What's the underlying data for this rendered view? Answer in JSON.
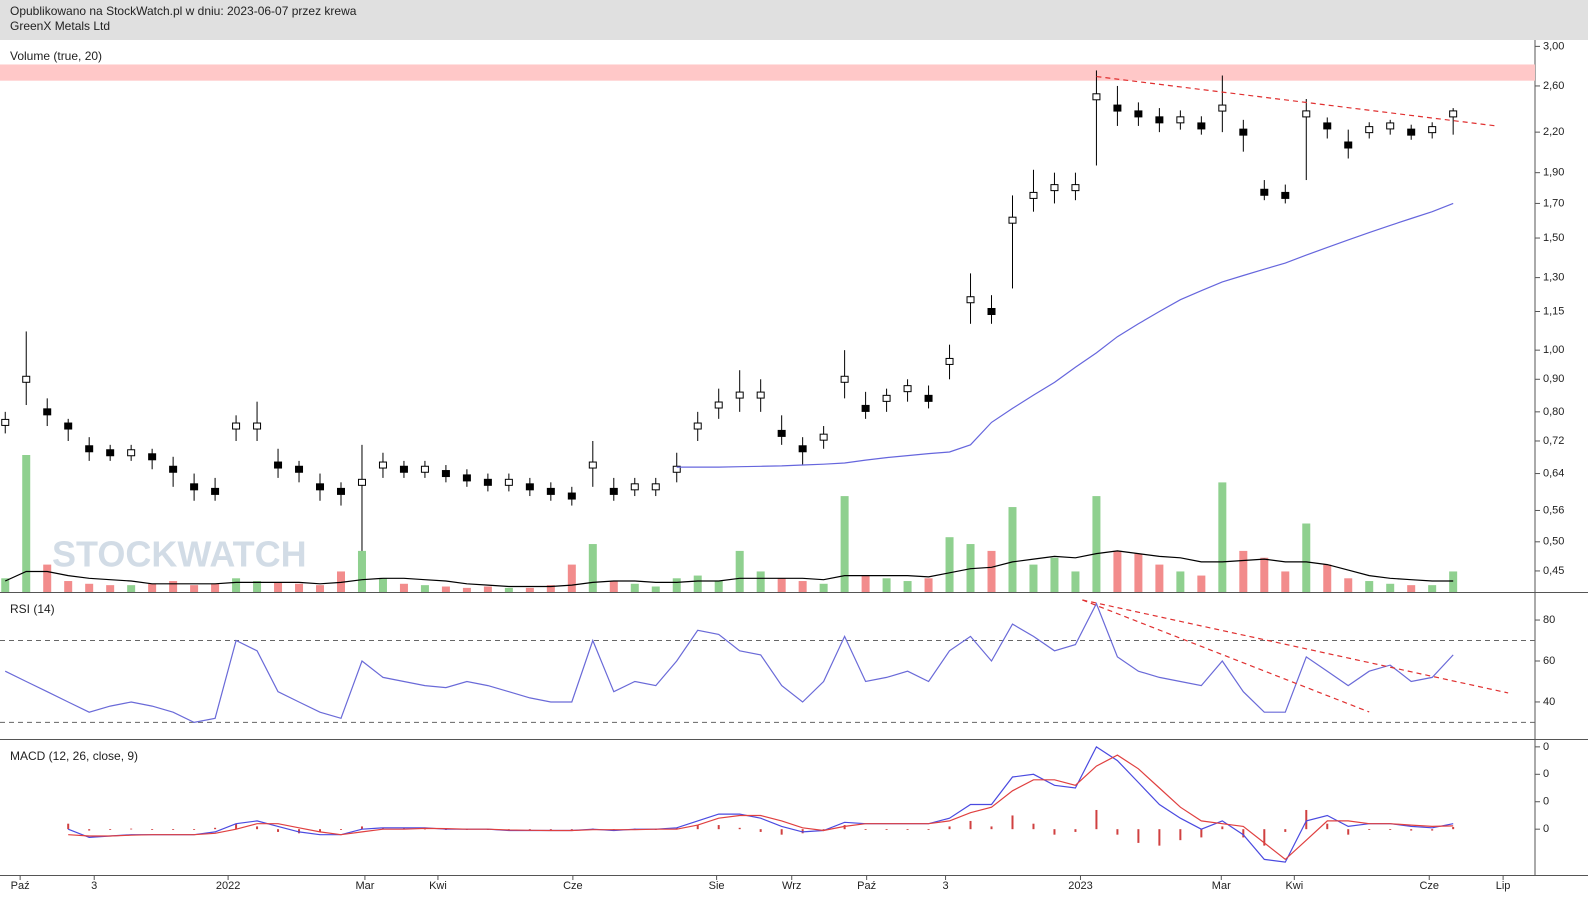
{
  "header": {
    "line1": "Opublikowano na StockWatch.pl w dniu: 2023-06-07 przez krewa",
    "line2": "GreenX Metals Ltd"
  },
  "chart_data": [
    {
      "type": "candlestick",
      "log_scale": true,
      "watermark": "STOCKWATCH",
      "xlim": [
        -0.25,
        72.9
      ],
      "ylim": [
        0.417,
        3.07
      ],
      "yticks": [
        {
          "value": 3,
          "label": "3,00"
        },
        {
          "value": 2.6,
          "label": "2,60"
        },
        {
          "value": 2.2,
          "label": "2,20"
        },
        {
          "value": 1.9,
          "label": "1,90"
        },
        {
          "value": 1.7,
          "label": "1,70"
        },
        {
          "value": 1.5,
          "label": "1,50"
        },
        {
          "value": 1.3,
          "label": "1,30"
        },
        {
          "value": 1.15,
          "label": "1,15"
        },
        {
          "value": 1,
          "label": "1,00"
        },
        {
          "value": 0.9,
          "label": "0,90"
        },
        {
          "value": 0.8,
          "label": "0,80"
        },
        {
          "value": 0.72,
          "label": "0,72"
        },
        {
          "value": 0.64,
          "label": "0,64"
        },
        {
          "value": 0.56,
          "label": "0,56"
        },
        {
          "value": 0.5,
          "label": "0,50"
        },
        {
          "value": 0.45,
          "label": "0,45"
        }
      ],
      "zone": [
        2.65,
        2.81
      ],
      "zone_color": "#ffc8c8",
      "up_color": "#ffffff",
      "down_color": "#000000",
      "high": [
        0.8,
        1.07,
        0.84,
        0.78,
        0.73,
        0.71,
        0.71,
        0.7,
        0.68,
        0.64,
        0.63,
        0.79,
        0.83,
        0.7,
        0.67,
        0.64,
        0.62,
        0.71,
        0.69,
        0.67,
        0.67,
        0.66,
        0.65,
        0.64,
        0.64,
        0.63,
        0.62,
        0.61,
        0.72,
        0.63,
        0.63,
        0.63,
        0.69,
        0.8,
        0.87,
        0.93,
        0.9,
        0.79,
        0.73,
        0.76,
        1.0,
        0.86,
        0.87,
        0.9,
        0.88,
        1.02,
        1.32,
        1.22,
        1.75,
        1.92,
        1.9,
        1.9,
        2.75,
        2.6,
        2.45,
        2.4,
        2.38,
        2.33,
        2.7,
        2.3,
        1.85,
        1.82,
        2.48,
        2.32,
        2.22,
        2.28,
        2.3,
        2.26,
        2.28,
        2.4
      ],
      "low": [
        0.74,
        0.82,
        0.76,
        0.72,
        0.67,
        0.67,
        0.67,
        0.65,
        0.61,
        0.58,
        0.58,
        0.72,
        0.72,
        0.63,
        0.62,
        0.58,
        0.57,
        0.45,
        0.63,
        0.63,
        0.63,
        0.62,
        0.61,
        0.6,
        0.6,
        0.59,
        0.58,
        0.57,
        0.61,
        0.58,
        0.59,
        0.59,
        0.62,
        0.72,
        0.78,
        0.8,
        0.8,
        0.71,
        0.66,
        0.7,
        0.84,
        0.78,
        0.8,
        0.83,
        0.81,
        0.9,
        1.1,
        1.1,
        1.25,
        1.65,
        1.7,
        1.72,
        1.95,
        2.25,
        2.25,
        2.2,
        2.22,
        2.18,
        2.2,
        2.05,
        1.72,
        1.7,
        1.85,
        2.15,
        2.0,
        2.15,
        2.18,
        2.14,
        2.15,
        2.18
      ],
      "close": [
        0.77,
        0.9,
        0.8,
        0.76,
        0.7,
        0.69,
        0.69,
        0.68,
        0.65,
        0.61,
        0.6,
        0.76,
        0.76,
        0.66,
        0.65,
        0.61,
        0.6,
        0.62,
        0.66,
        0.65,
        0.65,
        0.64,
        0.63,
        0.62,
        0.62,
        0.61,
        0.6,
        0.59,
        0.66,
        0.6,
        0.61,
        0.61,
        0.65,
        0.76,
        0.82,
        0.85,
        0.85,
        0.74,
        0.7,
        0.73,
        0.9,
        0.81,
        0.84,
        0.87,
        0.84,
        0.96,
        1.2,
        1.15,
        1.6,
        1.75,
        1.8,
        1.8,
        2.5,
        2.4,
        2.35,
        2.3,
        2.3,
        2.25,
        2.4,
        2.2,
        1.77,
        1.75,
        2.35,
        2.25,
        2.1,
        2.22,
        2.25,
        2.2,
        2.22,
        2.35
      ],
      "series": [
        {
          "color": "#6666dd",
          "values": [
            null,
            null,
            null,
            null,
            null,
            null,
            null,
            null,
            null,
            null,
            null,
            null,
            null,
            null,
            null,
            null,
            null,
            null,
            null,
            null,
            null,
            null,
            null,
            null,
            null,
            null,
            null,
            null,
            null,
            null,
            null,
            null,
            0.655,
            0.655,
            0.655,
            0.656,
            0.657,
            0.658,
            0.66,
            0.662,
            0.665,
            0.672,
            0.678,
            0.683,
            0.688,
            0.692,
            0.71,
            0.77,
            0.81,
            0.85,
            0.89,
            0.94,
            0.99,
            1.05,
            1.1,
            1.15,
            1.2,
            1.24,
            1.28,
            1.31,
            1.34,
            1.37,
            1.41,
            1.45,
            1.49,
            1.53,
            1.57,
            1.61,
            1.65,
            1.7
          ]
        }
      ],
      "trendlines": [
        {
          "color": "#e03030",
          "x": [
            52,
            71.05
          ],
          "y": [
            2.69,
            2.25
          ]
        }
      ]
    },
    {
      "type": "bar",
      "title": "Volume (true, 20)",
      "xlim": [
        -0.25,
        72.9
      ],
      "ylim": [
        0,
        100
      ],
      "up_color": "#8fd08f",
      "down_color": "#f28c8c",
      "values": [
        10,
        100,
        20,
        8,
        6,
        5,
        5,
        6,
        8,
        5,
        6,
        10,
        8,
        7,
        6,
        5,
        15,
        30,
        10,
        6,
        5,
        4,
        3,
        4,
        3,
        3,
        5,
        20,
        35,
        8,
        6,
        4,
        10,
        12,
        8,
        30,
        15,
        10,
        8,
        6,
        70,
        12,
        10,
        8,
        10,
        40,
        35,
        30,
        62,
        20,
        25,
        15,
        70,
        30,
        28,
        20,
        15,
        12,
        80,
        30,
        25,
        15,
        50,
        20,
        10,
        8,
        6,
        5,
        5,
        15
      ],
      "series": [
        {
          "color": "#000000",
          "values": [
            8,
            15,
            15,
            12,
            10,
            9,
            8,
            6,
            6,
            6,
            6,
            7,
            7,
            7,
            7,
            6,
            7,
            9,
            10,
            10,
            9,
            8,
            6,
            5,
            4,
            4,
            4,
            5,
            7,
            8,
            8,
            7,
            7,
            8,
            8,
            10,
            10,
            10,
            10,
            9,
            12,
            12,
            12,
            12,
            11,
            14,
            17,
            18,
            22,
            24,
            26,
            25,
            28,
            30,
            28,
            26,
            25,
            22,
            22,
            23,
            24,
            22,
            22,
            20,
            16,
            12,
            10,
            9,
            8,
            8
          ]
        }
      ]
    },
    {
      "type": "line",
      "title": "RSI (14)",
      "xlim": [
        -0.25,
        72.9
      ],
      "ylim": [
        22.4,
        93.2
      ],
      "yticks": [
        80,
        60,
        40
      ],
      "levels": [
        70,
        30
      ],
      "series": [
        {
          "color": "#6a6ad8",
          "values": [
            55,
            50,
            45,
            40,
            35,
            38,
            40,
            38,
            35,
            30,
            32,
            70,
            65,
            45,
            40,
            35,
            32,
            60,
            52,
            50,
            48,
            47,
            50,
            48,
            45,
            42,
            40,
            40,
            70,
            45,
            50,
            48,
            60,
            75,
            73,
            65,
            63,
            48,
            40,
            50,
            72,
            50,
            52,
            55,
            50,
            65,
            72,
            60,
            78,
            72,
            65,
            68,
            88,
            62,
            55,
            52,
            50,
            48,
            60,
            45,
            35,
            35,
            62,
            55,
            48,
            55,
            58,
            50,
            52,
            63
          ]
        }
      ],
      "trendlines": [
        {
          "color": "#e03030",
          "x": [
            51.33,
            65.0
          ],
          "y": [
            89.8,
            35.1
          ]
        },
        {
          "color": "#e03030",
          "x": [
            51.33,
            71.62
          ],
          "y": [
            89.8,
            44.4
          ]
        }
      ]
    },
    {
      "type": "macd",
      "title": "MACD (12, 26, close, 9)",
      "xlim": [
        -0.25,
        72.9
      ],
      "ylim": [
        -0.167,
        0.325
      ],
      "yticks": [
        {
          "value": 0.3,
          "label": "0"
        },
        {
          "value": 0.2,
          "label": "0"
        },
        {
          "value": 0.1,
          "label": "0"
        },
        {
          "value": 0,
          "label": "0"
        }
      ],
      "xticks": [
        {
          "value": 0.71,
          "label": "Paź"
        },
        {
          "value": 4.24,
          "label": "3"
        },
        {
          "value": 10.62,
          "label": "2022"
        },
        {
          "value": 17.14,
          "label": "Mar"
        },
        {
          "value": 20.62,
          "label": "Kwi"
        },
        {
          "value": 27.05,
          "label": "Cze"
        },
        {
          "value": 33.9,
          "label": "Sie"
        },
        {
          "value": 37.48,
          "label": "Wrz"
        },
        {
          "value": 41.05,
          "label": "Paź"
        },
        {
          "value": 44.81,
          "label": "3"
        },
        {
          "value": 51.24,
          "label": "2023"
        },
        {
          "value": 57.95,
          "label": "Mar"
        },
        {
          "value": 61.43,
          "label": "Kwi"
        },
        {
          "value": 67.86,
          "label": "Cze"
        },
        {
          "value": 71.38,
          "label": "Lip"
        }
      ],
      "histogram_color": "#d04040",
      "histogram": [
        null,
        null,
        null,
        0.02,
        -0.005,
        0,
        0.002,
        0,
        0,
        0,
        0.005,
        0.02,
        0.01,
        -0.01,
        -0.015,
        -0.01,
        0,
        0.01,
        0.005,
        0.005,
        0.002,
        -0.002,
        0,
        0,
        -0.002,
        -0.001,
        0,
        0,
        0.002,
        -0.003,
        0.002,
        0,
        0.005,
        0.015,
        0.015,
        0.005,
        -0.01,
        -0.02,
        -0.015,
        0,
        0.015,
        0,
        0,
        0,
        0,
        0.01,
        0.03,
        0.01,
        0.05,
        0.02,
        -0.02,
        -0.01,
        0.07,
        -0.02,
        -0.05,
        -0.06,
        -0.04,
        -0.03,
        0.01,
        -0.03,
        -0.06,
        -0.01,
        0.07,
        0.02,
        -0.02,
        0,
        0,
        -0.005,
        -0.005,
        0.008
      ],
      "series": [
        {
          "color": "#4a4ae0",
          "values": [
            null,
            null,
            null,
            0.0,
            -0.03,
            -0.025,
            -0.02,
            -0.02,
            -0.02,
            -0.02,
            -0.01,
            0.02,
            0.03,
            0.01,
            -0.01,
            -0.02,
            -0.02,
            0.0,
            0.005,
            0.005,
            0.005,
            0.0,
            0.0,
            0.0,
            -0.005,
            -0.005,
            -0.005,
            -0.005,
            0.0,
            -0.005,
            0.0,
            0.0,
            0.005,
            0.03,
            0.055,
            0.055,
            0.04,
            0.01,
            -0.01,
            -0.005,
            0.025,
            0.02,
            0.02,
            0.02,
            0.02,
            0.04,
            0.09,
            0.09,
            0.19,
            0.2,
            0.16,
            0.15,
            0.3,
            0.25,
            0.17,
            0.09,
            0.04,
            0.0,
            0.03,
            -0.02,
            -0.11,
            -0.12,
            0.03,
            0.05,
            0.01,
            0.02,
            0.02,
            0.01,
            0.005,
            0.02
          ]
        },
        {
          "color": "#e04040",
          "values": [
            null,
            null,
            null,
            -0.02,
            -0.025,
            -0.025,
            -0.022,
            -0.02,
            -0.02,
            -0.02,
            -0.015,
            0.0,
            0.02,
            0.02,
            0.005,
            -0.01,
            -0.02,
            -0.01,
            0.0,
            0.0,
            0.003,
            0.002,
            0.0,
            0.0,
            -0.003,
            -0.004,
            -0.005,
            -0.005,
            -0.002,
            -0.002,
            -0.002,
            0.0,
            0.0,
            0.015,
            0.04,
            0.05,
            0.05,
            0.03,
            0.005,
            -0.005,
            0.01,
            0.02,
            0.02,
            0.02,
            0.02,
            0.03,
            0.06,
            0.08,
            0.14,
            0.18,
            0.18,
            0.16,
            0.23,
            0.27,
            0.22,
            0.15,
            0.08,
            0.03,
            0.02,
            0.01,
            -0.05,
            -0.11,
            -0.04,
            0.03,
            0.03,
            0.02,
            0.02,
            0.015,
            0.01,
            0.012
          ]
        }
      ]
    }
  ]
}
